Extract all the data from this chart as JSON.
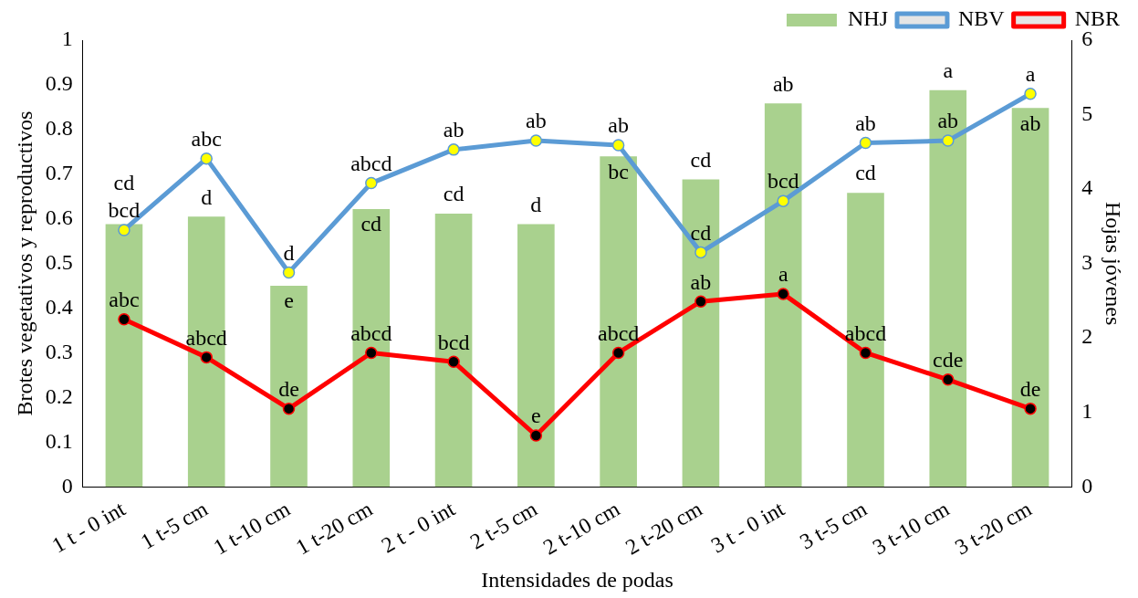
{
  "chart_data": {
    "type": "bar",
    "xlabel": "Intensidades de podas",
    "ylabel": "Brotes vegetativos y reproductivos",
    "y2label": "Hojas jóvenes",
    "categories": [
      "1 t - 0 int",
      "1 t-5 cm",
      "1 t-10 cm",
      "1 t-20 cm",
      "2 t - 0 int",
      "2 t-5 cm",
      "2 t-10 cm",
      "2 t-20 cm",
      "3 t - 0 int",
      "3 t-5 cm",
      "3 t-10 cm",
      "3 t-20 cm"
    ],
    "series": [
      {
        "name": "NHJ",
        "axis": "y2",
        "color": "#a9d18e",
        "values": [
          3.53,
          3.63,
          2.7,
          3.73,
          3.67,
          3.53,
          4.44,
          4.13,
          5.15,
          3.95,
          5.33,
          5.09
        ],
        "value_labels": [
          "cd",
          "d",
          "e",
          "cd",
          "cd",
          "d",
          "bc",
          "cd",
          "ab",
          "cd",
          "a",
          "ab"
        ]
      },
      {
        "name": "NBV",
        "type": "line",
        "color": "#5b9bd5",
        "values": [
          0.575,
          0.735,
          0.48,
          0.68,
          0.755,
          0.775,
          0.765,
          0.525,
          0.64,
          0.77,
          0.775,
          0.88
        ],
        "value_labels": [
          "bcd",
          "abc",
          "d",
          "abcd",
          "ab",
          "ab",
          "ab",
          "cd",
          "bcd",
          "ab",
          "ab",
          "a"
        ]
      },
      {
        "name": "NBR",
        "type": "line",
        "color": "#ff0000",
        "values": [
          0.375,
          0.29,
          0.175,
          0.3,
          0.28,
          0.115,
          0.3,
          0.415,
          0.432,
          0.3,
          0.24,
          0.175
        ],
        "value_labels": [
          "abc",
          "abcd",
          "de",
          "abcd",
          "bcd",
          "e",
          "abcd",
          "ab",
          "a",
          "abcd",
          "cde",
          "de"
        ]
      }
    ],
    "ylim": [
      0,
      1
    ],
    "yticks": [
      0,
      0.1,
      0.2,
      0.3,
      0.4,
      0.5,
      0.6,
      0.7,
      0.8,
      0.9,
      1
    ],
    "y2lim": [
      0,
      6
    ],
    "y2ticks": [
      0,
      1,
      2,
      3,
      4,
      5,
      6
    ],
    "grid": false,
    "legend": "top right",
    "marker": "circle",
    "line_style": "solid"
  }
}
